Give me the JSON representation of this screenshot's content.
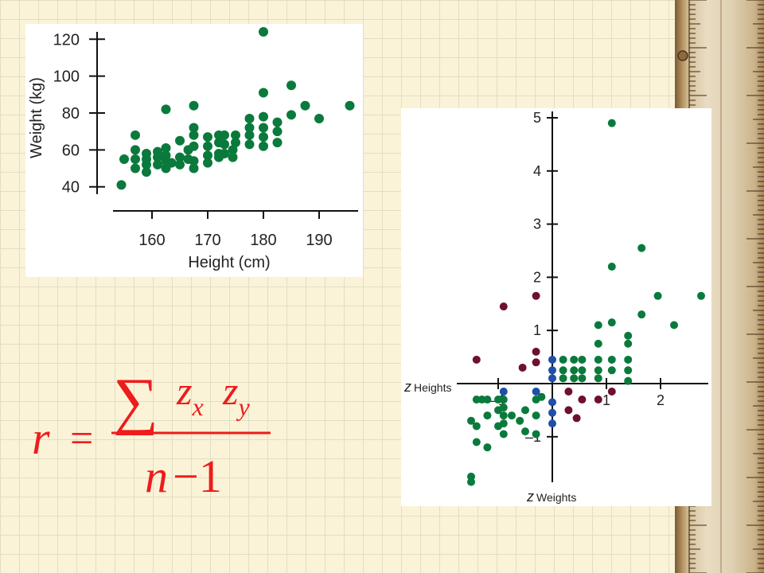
{
  "colors": {
    "point": "#0a7a3c",
    "point_dark_red": "#6e1030",
    "point_blue": "#1f4fa8",
    "formula": "#ee1c1c",
    "axis": "#111111"
  },
  "chart_data": [
    {
      "type": "scatter",
      "title": "",
      "xlabel": "Height (cm)",
      "ylabel": "Weight (kg)",
      "xlim": [
        153,
        197
      ],
      "ylim": [
        36,
        124
      ],
      "xticks": [
        160,
        170,
        180,
        190
      ],
      "yticks": [
        40,
        60,
        80,
        100,
        120
      ],
      "grid": false,
      "points": [
        {
          "x": 154.5,
          "y": 41
        },
        {
          "x": 155,
          "y": 55
        },
        {
          "x": 157,
          "y": 68
        },
        {
          "x": 157,
          "y": 60
        },
        {
          "x": 157,
          "y": 55
        },
        {
          "x": 157,
          "y": 50
        },
        {
          "x": 159,
          "y": 58
        },
        {
          "x": 159,
          "y": 55
        },
        {
          "x": 159,
          "y": 52
        },
        {
          "x": 159,
          "y": 48
        },
        {
          "x": 161,
          "y": 59
        },
        {
          "x": 161,
          "y": 56
        },
        {
          "x": 161,
          "y": 52
        },
        {
          "x": 162.5,
          "y": 61
        },
        {
          "x": 162.5,
          "y": 57
        },
        {
          "x": 162.5,
          "y": 54
        },
        {
          "x": 162.5,
          "y": 50
        },
        {
          "x": 162.5,
          "y": 82
        },
        {
          "x": 163.5,
          "y": 53
        },
        {
          "x": 165,
          "y": 65
        },
        {
          "x": 165,
          "y": 56
        },
        {
          "x": 165,
          "y": 52
        },
        {
          "x": 166.5,
          "y": 60
        },
        {
          "x": 166.5,
          "y": 55
        },
        {
          "x": 167.5,
          "y": 84
        },
        {
          "x": 167.5,
          "y": 72
        },
        {
          "x": 167.5,
          "y": 68
        },
        {
          "x": 167.5,
          "y": 62
        },
        {
          "x": 167.5,
          "y": 54
        },
        {
          "x": 167.5,
          "y": 50
        },
        {
          "x": 170,
          "y": 67
        },
        {
          "x": 170,
          "y": 62
        },
        {
          "x": 170,
          "y": 57
        },
        {
          "x": 170,
          "y": 53
        },
        {
          "x": 172,
          "y": 68
        },
        {
          "x": 172,
          "y": 64
        },
        {
          "x": 172,
          "y": 58
        },
        {
          "x": 172,
          "y": 56
        },
        {
          "x": 173,
          "y": 68
        },
        {
          "x": 173,
          "y": 63
        },
        {
          "x": 173,
          "y": 58
        },
        {
          "x": 174.5,
          "y": 60
        },
        {
          "x": 174.5,
          "y": 56
        },
        {
          "x": 175,
          "y": 68
        },
        {
          "x": 175,
          "y": 64
        },
        {
          "x": 177.5,
          "y": 77
        },
        {
          "x": 177.5,
          "y": 72
        },
        {
          "x": 177.5,
          "y": 68
        },
        {
          "x": 177.5,
          "y": 63
        },
        {
          "x": 180,
          "y": 124
        },
        {
          "x": 180,
          "y": 91
        },
        {
          "x": 180,
          "y": 78
        },
        {
          "x": 180,
          "y": 72
        },
        {
          "x": 180,
          "y": 67
        },
        {
          "x": 180,
          "y": 62
        },
        {
          "x": 182.5,
          "y": 75
        },
        {
          "x": 182.5,
          "y": 70
        },
        {
          "x": 182.5,
          "y": 64
        },
        {
          "x": 185,
          "y": 95
        },
        {
          "x": 185,
          "y": 79
        },
        {
          "x": 187.5,
          "y": 84
        },
        {
          "x": 190,
          "y": 77
        },
        {
          "x": 195.5,
          "y": 84
        }
      ]
    },
    {
      "type": "scatter",
      "title": "",
      "xlabel": "z Heights",
      "ylabel": "z Weights",
      "xlim": [
        -1.6,
        2.8
      ],
      "ylim": [
        -2.2,
        5.2
      ],
      "xticks": [
        -1,
        1,
        2
      ],
      "xtick_labels": [
        "–1",
        "1",
        "2"
      ],
      "yticks": [
        -1,
        1,
        2,
        3,
        4,
        5
      ],
      "ytick_labels": [
        "–1",
        "1",
        "2",
        "3",
        "4",
        "5"
      ],
      "grid": false,
      "points": [
        {
          "x": -1.5,
          "y": -1.75,
          "c": "point"
        },
        {
          "x": -1.5,
          "y": -1.85,
          "c": "point"
        },
        {
          "x": -1.5,
          "y": -0.7,
          "c": "point"
        },
        {
          "x": -1.4,
          "y": -0.3,
          "c": "point"
        },
        {
          "x": -1.4,
          "y": -0.8,
          "c": "point"
        },
        {
          "x": -1.4,
          "y": -1.1,
          "c": "point"
        },
        {
          "x": -1.3,
          "y": -0.3,
          "c": "point"
        },
        {
          "x": -1.2,
          "y": -0.3,
          "c": "point"
        },
        {
          "x": -1.2,
          "y": -0.6,
          "c": "point"
        },
        {
          "x": -1.2,
          "y": -1.2,
          "c": "point"
        },
        {
          "x": -1.0,
          "y": -0.3,
          "c": "point"
        },
        {
          "x": -1.0,
          "y": -0.5,
          "c": "point"
        },
        {
          "x": -1.0,
          "y": -0.8,
          "c": "point"
        },
        {
          "x": -0.9,
          "y": -0.3,
          "c": "point"
        },
        {
          "x": -0.9,
          "y": -0.45,
          "c": "point"
        },
        {
          "x": -0.9,
          "y": -0.6,
          "c": "point"
        },
        {
          "x": -0.9,
          "y": -0.75,
          "c": "point"
        },
        {
          "x": -0.9,
          "y": -0.95,
          "c": "point"
        },
        {
          "x": -0.75,
          "y": -0.6,
          "c": "point"
        },
        {
          "x": -0.6,
          "y": -0.7,
          "c": "point"
        },
        {
          "x": -0.5,
          "y": -0.5,
          "c": "point"
        },
        {
          "x": -0.5,
          "y": -0.9,
          "c": "point"
        },
        {
          "x": -0.3,
          "y": -0.3,
          "c": "point"
        },
        {
          "x": -0.3,
          "y": -0.6,
          "c": "point"
        },
        {
          "x": -0.3,
          "y": -0.95,
          "c": "point"
        },
        {
          "x": -0.2,
          "y": -0.25,
          "c": "point"
        },
        {
          "x": 0.2,
          "y": 0.45,
          "c": "point"
        },
        {
          "x": 0.2,
          "y": 0.25,
          "c": "point"
        },
        {
          "x": 0.2,
          "y": 0.1,
          "c": "point"
        },
        {
          "x": 0.4,
          "y": 0.45,
          "c": "point"
        },
        {
          "x": 0.4,
          "y": 0.25,
          "c": "point"
        },
        {
          "x": 0.4,
          "y": 0.1,
          "c": "point"
        },
        {
          "x": 0.55,
          "y": 0.45,
          "c": "point"
        },
        {
          "x": 0.55,
          "y": 0.25,
          "c": "point"
        },
        {
          "x": 0.55,
          "y": 0.1,
          "c": "point"
        },
        {
          "x": 0.85,
          "y": 1.1,
          "c": "point"
        },
        {
          "x": 0.85,
          "y": 0.75,
          "c": "point"
        },
        {
          "x": 0.85,
          "y": 0.45,
          "c": "point"
        },
        {
          "x": 0.85,
          "y": 0.25,
          "c": "point"
        },
        {
          "x": 0.85,
          "y": 0.1,
          "c": "point"
        },
        {
          "x": 1.1,
          "y": 4.9,
          "c": "point"
        },
        {
          "x": 1.1,
          "y": 2.2,
          "c": "point"
        },
        {
          "x": 1.1,
          "y": 1.15,
          "c": "point"
        },
        {
          "x": 1.1,
          "y": 0.45,
          "c": "point"
        },
        {
          "x": 1.1,
          "y": 0.25,
          "c": "point"
        },
        {
          "x": 1.4,
          "y": 0.9,
          "c": "point"
        },
        {
          "x": 1.4,
          "y": 0.75,
          "c": "point"
        },
        {
          "x": 1.4,
          "y": 0.45,
          "c": "point"
        },
        {
          "x": 1.4,
          "y": 0.25,
          "c": "point"
        },
        {
          "x": 1.4,
          "y": 0.05,
          "c": "point"
        },
        {
          "x": 1.65,
          "y": 2.55,
          "c": "point"
        },
        {
          "x": 1.65,
          "y": 1.3,
          "c": "point"
        },
        {
          "x": 1.95,
          "y": 1.65,
          "c": "point"
        },
        {
          "x": 2.25,
          "y": 1.1,
          "c": "point"
        },
        {
          "x": 2.75,
          "y": 1.65,
          "c": "point"
        },
        {
          "x": -1.4,
          "y": 0.45,
          "c": "point_dark_red"
        },
        {
          "x": -0.9,
          "y": 1.45,
          "c": "point_dark_red"
        },
        {
          "x": -0.55,
          "y": 0.3,
          "c": "point_dark_red"
        },
        {
          "x": -0.3,
          "y": 1.65,
          "c": "point_dark_red"
        },
        {
          "x": -0.3,
          "y": 0.6,
          "c": "point_dark_red"
        },
        {
          "x": -0.3,
          "y": 0.4,
          "c": "point_dark_red"
        },
        {
          "x": 0.3,
          "y": -0.15,
          "c": "point_dark_red"
        },
        {
          "x": 0.3,
          "y": -0.5,
          "c": "point_dark_red"
        },
        {
          "x": 0.45,
          "y": -0.65,
          "c": "point_dark_red"
        },
        {
          "x": 0.55,
          "y": -0.3,
          "c": "point_dark_red"
        },
        {
          "x": 0.85,
          "y": -0.3,
          "c": "point_dark_red"
        },
        {
          "x": 1.1,
          "y": -0.15,
          "c": "point_dark_red"
        },
        {
          "x": -0.9,
          "y": -0.15,
          "c": "point_blue"
        },
        {
          "x": -0.3,
          "y": -0.15,
          "c": "point_blue"
        },
        {
          "x": 0.0,
          "y": 0.45,
          "c": "point_blue"
        },
        {
          "x": 0.0,
          "y": 0.25,
          "c": "point_blue"
        },
        {
          "x": 0.0,
          "y": 0.1,
          "c": "point_blue"
        },
        {
          "x": 0.0,
          "y": -0.35,
          "c": "point_blue"
        },
        {
          "x": 0.0,
          "y": -0.55,
          "c": "point_blue"
        },
        {
          "x": 0.0,
          "y": -0.75,
          "c": "point_blue"
        }
      ]
    }
  ],
  "formula": {
    "lhs": "r",
    "equals": "=",
    "sum": "∑",
    "z1": "z",
    "sub_x": "x",
    "z2": "z",
    "sub_y": "y",
    "denominator_n": "n",
    "denominator_rest": "−1"
  }
}
